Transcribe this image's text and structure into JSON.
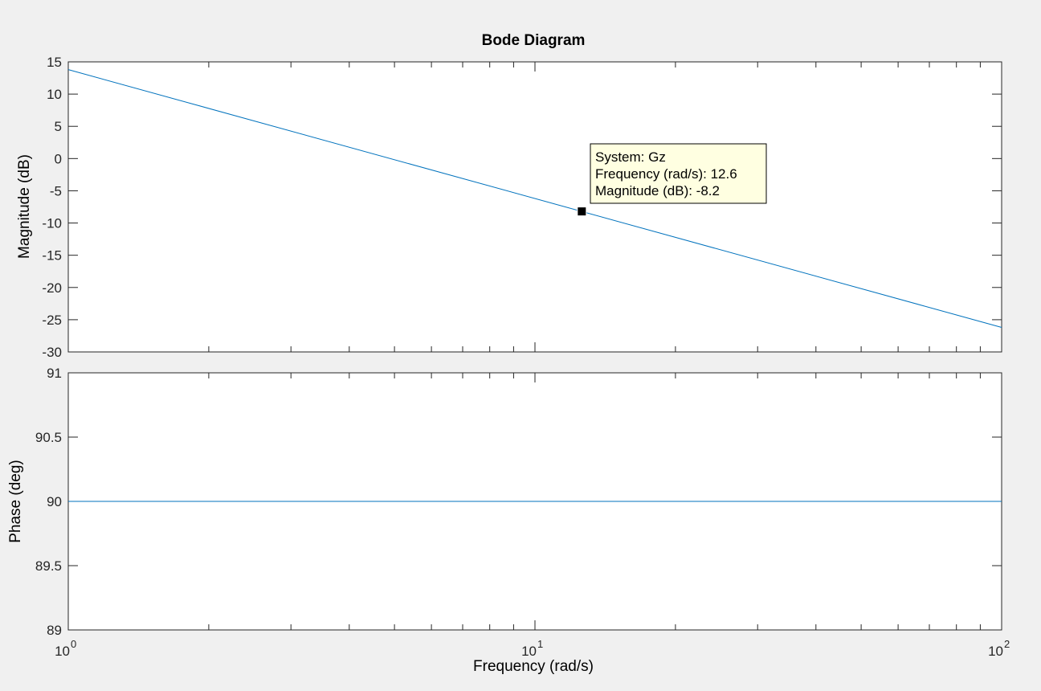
{
  "chart_data": {
    "type": "line",
    "title": "Bode Diagram",
    "xlabel": "Frequency  (rad/s)",
    "xscale": "log",
    "xlim": [
      1,
      100
    ],
    "x_tick_labels": [
      {
        "base": "10",
        "exp": "0",
        "value": 1
      },
      {
        "base": "10",
        "exp": "1",
        "value": 10
      },
      {
        "base": "10",
        "exp": "2",
        "value": 100
      }
    ],
    "panels": [
      {
        "ylabel": "Magnitude (dB)",
        "ylim": [
          -30,
          15
        ],
        "y_tick_labels": [
          "15",
          "10",
          "5",
          "0",
          "-5",
          "-10",
          "-15",
          "-20",
          "-25",
          "-30"
        ],
        "y_tick_values": [
          15,
          10,
          5,
          0,
          -5,
          -10,
          -15,
          -20,
          -25,
          -30
        ],
        "series": [
          {
            "x": [
              1,
              100
            ],
            "values": [
              13.8,
              -26.2
            ]
          }
        ],
        "datatip": {
          "x": 12.6,
          "y": -8.2,
          "lines": [
            "System: Gz",
            "Frequency (rad/s): 12.6",
            "Magnitude (dB): -8.2"
          ]
        }
      },
      {
        "ylabel": "Phase (deg)",
        "ylim": [
          89,
          91
        ],
        "y_tick_labels": [
          "91",
          "90.5",
          "90",
          "89.5",
          "89"
        ],
        "y_tick_values": [
          91,
          90.5,
          90,
          89.5,
          89
        ],
        "series": [
          {
            "x": [
              1,
              100
            ],
            "values": [
              90,
              90
            ]
          }
        ]
      }
    ],
    "line_color": "#0072bd",
    "grid": false
  }
}
